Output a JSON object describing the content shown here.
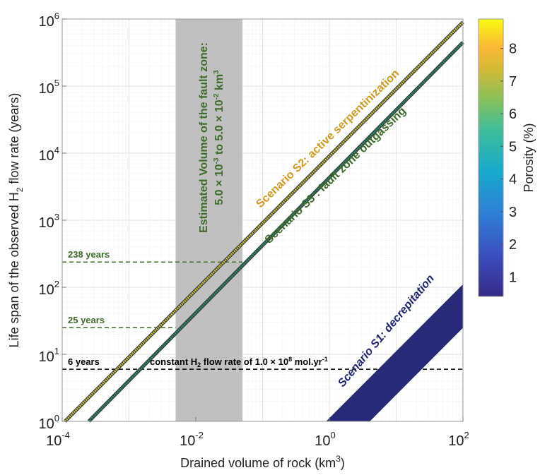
{
  "chart_data": {
    "type": "line",
    "xlabel": "Drained volume of rock (km",
    "xlabel_sup": "3",
    "xlabel_end": ")",
    "ylabel": "Life span of the observed H",
    "ylabel_sub": "2",
    "ylabel_end": " flow rate  (years)",
    "xscale": "log",
    "yscale": "log",
    "xlim": [
      0.0001,
      100
    ],
    "ylim": [
      1,
      1000000
    ],
    "grid": true,
    "xticks": [
      {
        "base": "10",
        "exp": "-4",
        "v": 0.0001
      },
      {
        "base": "10",
        "exp": "-2",
        "v": 0.01
      },
      {
        "base": "10",
        "exp": "0",
        "v": 1
      },
      {
        "base": "10",
        "exp": "2",
        "v": 100
      }
    ],
    "yticks": [
      {
        "base": "10",
        "exp": "0",
        "v": 1
      },
      {
        "base": "10",
        "exp": "1",
        "v": 10
      },
      {
        "base": "10",
        "exp": "2",
        "v": 100
      },
      {
        "base": "10",
        "exp": "3",
        "v": 1000
      },
      {
        "base": "10",
        "exp": "4",
        "v": 10000
      },
      {
        "base": "10",
        "exp": "5",
        "v": 100000
      },
      {
        "base": "10",
        "exp": "6",
        "v": 1000000
      }
    ],
    "series": [
      {
        "name": "Scenario S2: active serpentinization",
        "color": "#d19a1e",
        "line_color": "#c8c43c",
        "x": [
          0.00011,
          100
        ],
        "y": [
          1,
          900000
        ]
      },
      {
        "name": "Scenario S3 : fault zone outgassing",
        "color": "#3d6b2a",
        "line_color": "#2b8c72",
        "x": [
          0.00025,
          100
        ],
        "y": [
          1,
          450000
        ]
      },
      {
        "name": "Scenario S1: decrepitation",
        "color": "#1f2470",
        "fill_color": "#262a78",
        "lower": {
          "x": [
            4,
            100
          ],
          "y": [
            1,
            25
          ]
        },
        "upper": {
          "x": [
            0.9,
            100
          ],
          "y": [
            1,
            110
          ]
        }
      }
    ],
    "band": {
      "x_range": [
        0.005,
        0.05
      ],
      "color": "#c0c0c0",
      "label_line1": "Estimated Volume of the fault zone:",
      "label_line2_a": "5.0 × 10",
      "label_line2_a_sup": "-3",
      "label_line2_b": " to 5.0 × 10",
      "label_line2_b_sup": "-2",
      "label_line2_c": " km",
      "label_line2_c_sup": "3",
      "label_color": "#3d6b2a"
    },
    "hlines": [
      {
        "y": 238,
        "x_end": 0.05,
        "label": "238 years",
        "color": "#3d6b2a"
      },
      {
        "y": 25,
        "x_end": 0.005,
        "label": "25 years",
        "color": "#3d6b2a"
      },
      {
        "y": 6,
        "x_end": 100,
        "label": "6 years",
        "color": "#000000"
      }
    ],
    "flow_label": {
      "a": "constant H",
      "sub": "2",
      "b": " flow rate of 1.0 × 10",
      "sup": "8",
      "c": " mol.yr",
      "sup2": "-1"
    },
    "colorbar": {
      "label": "Porosity (%)",
      "range": [
        0.4,
        8.9
      ],
      "ticks": [
        1,
        2,
        3,
        4,
        5,
        6,
        7,
        8
      ],
      "colormap": "parula"
    }
  }
}
